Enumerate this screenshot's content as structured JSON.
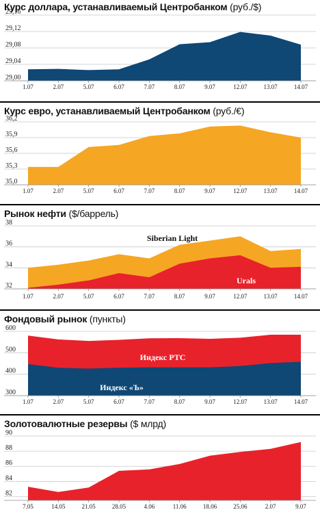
{
  "chart_data": [
    {
      "type": "area",
      "title": "Курс доллара, устанавливаемый Центробанком",
      "unit": "(руб./$)",
      "categories": [
        "1.07",
        "2.07",
        "5.07",
        "6.07",
        "7.07",
        "8.07",
        "9.07",
        "12.07",
        "13.07",
        "14.07"
      ],
      "ylim": [
        29.0,
        29.16
      ],
      "yticks": [
        "29,00",
        "29,04",
        "29,08",
        "29,12",
        "29,16"
      ],
      "series": [
        {
          "values": [
            29.028,
            29.029,
            29.026,
            29.028,
            29.052,
            29.089,
            29.094,
            29.119,
            29.11,
            29.088
          ],
          "color": "#0f4775"
        }
      ]
    },
    {
      "type": "area",
      "title": "Курс евро, устанавливаемый Центробанком",
      "unit": "(руб./€)",
      "categories": [
        "1.07",
        "2.07",
        "5.07",
        "6.07",
        "7.07",
        "8.07",
        "9.07",
        "12.07",
        "13.07",
        "14.07"
      ],
      "ylim": [
        35.0,
        36.2
      ],
      "yticks": [
        "35,0",
        "35,3",
        "35,6",
        "35,9",
        "36,2"
      ],
      "series": [
        {
          "values": [
            35.34,
            35.34,
            35.72,
            35.76,
            35.93,
            35.98,
            36.11,
            36.13,
            36.0,
            35.9
          ],
          "color": "#f5a623"
        }
      ]
    },
    {
      "type": "area",
      "title": "Рынок нефти",
      "unit": "($/баррель)",
      "categories": [
        "1.07",
        "2.07",
        "5.07",
        "6.07",
        "7.07",
        "8.07",
        "9.07",
        "12.07",
        "13.07",
        "14.07"
      ],
      "ylim": [
        32,
        38
      ],
      "yticks": [
        "32",
        "34",
        "36",
        "38"
      ],
      "series": [
        {
          "name": "Siberian Light",
          "values": [
            34.0,
            34.3,
            34.7,
            35.3,
            34.9,
            36.2,
            36.6,
            37.0,
            35.6,
            35.8
          ],
          "color": "#f5a623"
        },
        {
          "name": "Urals",
          "values": [
            32.1,
            32.4,
            32.8,
            33.5,
            33.1,
            34.4,
            34.9,
            35.2,
            34.0,
            34.1
          ],
          "color": "#e8222b"
        }
      ]
    },
    {
      "type": "area",
      "title": "Фондовый рынок",
      "unit": "(пункты)",
      "categories": [
        "1.07",
        "2.07",
        "5.07",
        "6.07",
        "7.07",
        "8.07",
        "9.07",
        "12.07",
        "13.07",
        "14.07"
      ],
      "ylim": [
        300,
        600
      ],
      "yticks": [
        "300",
        "400",
        "500",
        "600"
      ],
      "series": [
        {
          "name": "Индекс РТС",
          "values": [
            580,
            562,
            555,
            560,
            567,
            568,
            565,
            570,
            584,
            584
          ],
          "color": "#e8222b"
        },
        {
          "name": "Индекс «Ъ»",
          "values": [
            447,
            430,
            426,
            430,
            432,
            432,
            432,
            438,
            452,
            458
          ],
          "color": "#0f4775"
        }
      ]
    },
    {
      "type": "area",
      "title": "Золотовалютные резервы",
      "unit": "($ млрд)",
      "categories": [
        "7.05",
        "14.05",
        "21.05",
        "28.05",
        "4.06",
        "11.06",
        "18.06",
        "25.06",
        "2.07",
        "9.07"
      ],
      "ylim": [
        81.5,
        90
      ],
      "yticks": [
        "82",
        "84",
        "86",
        "88",
        "90"
      ],
      "series": [
        {
          "values": [
            83.3,
            82.6,
            83.2,
            85.4,
            85.6,
            86.3,
            87.4,
            87.9,
            88.3,
            89.2
          ],
          "color": "#e8222b"
        }
      ]
    }
  ]
}
